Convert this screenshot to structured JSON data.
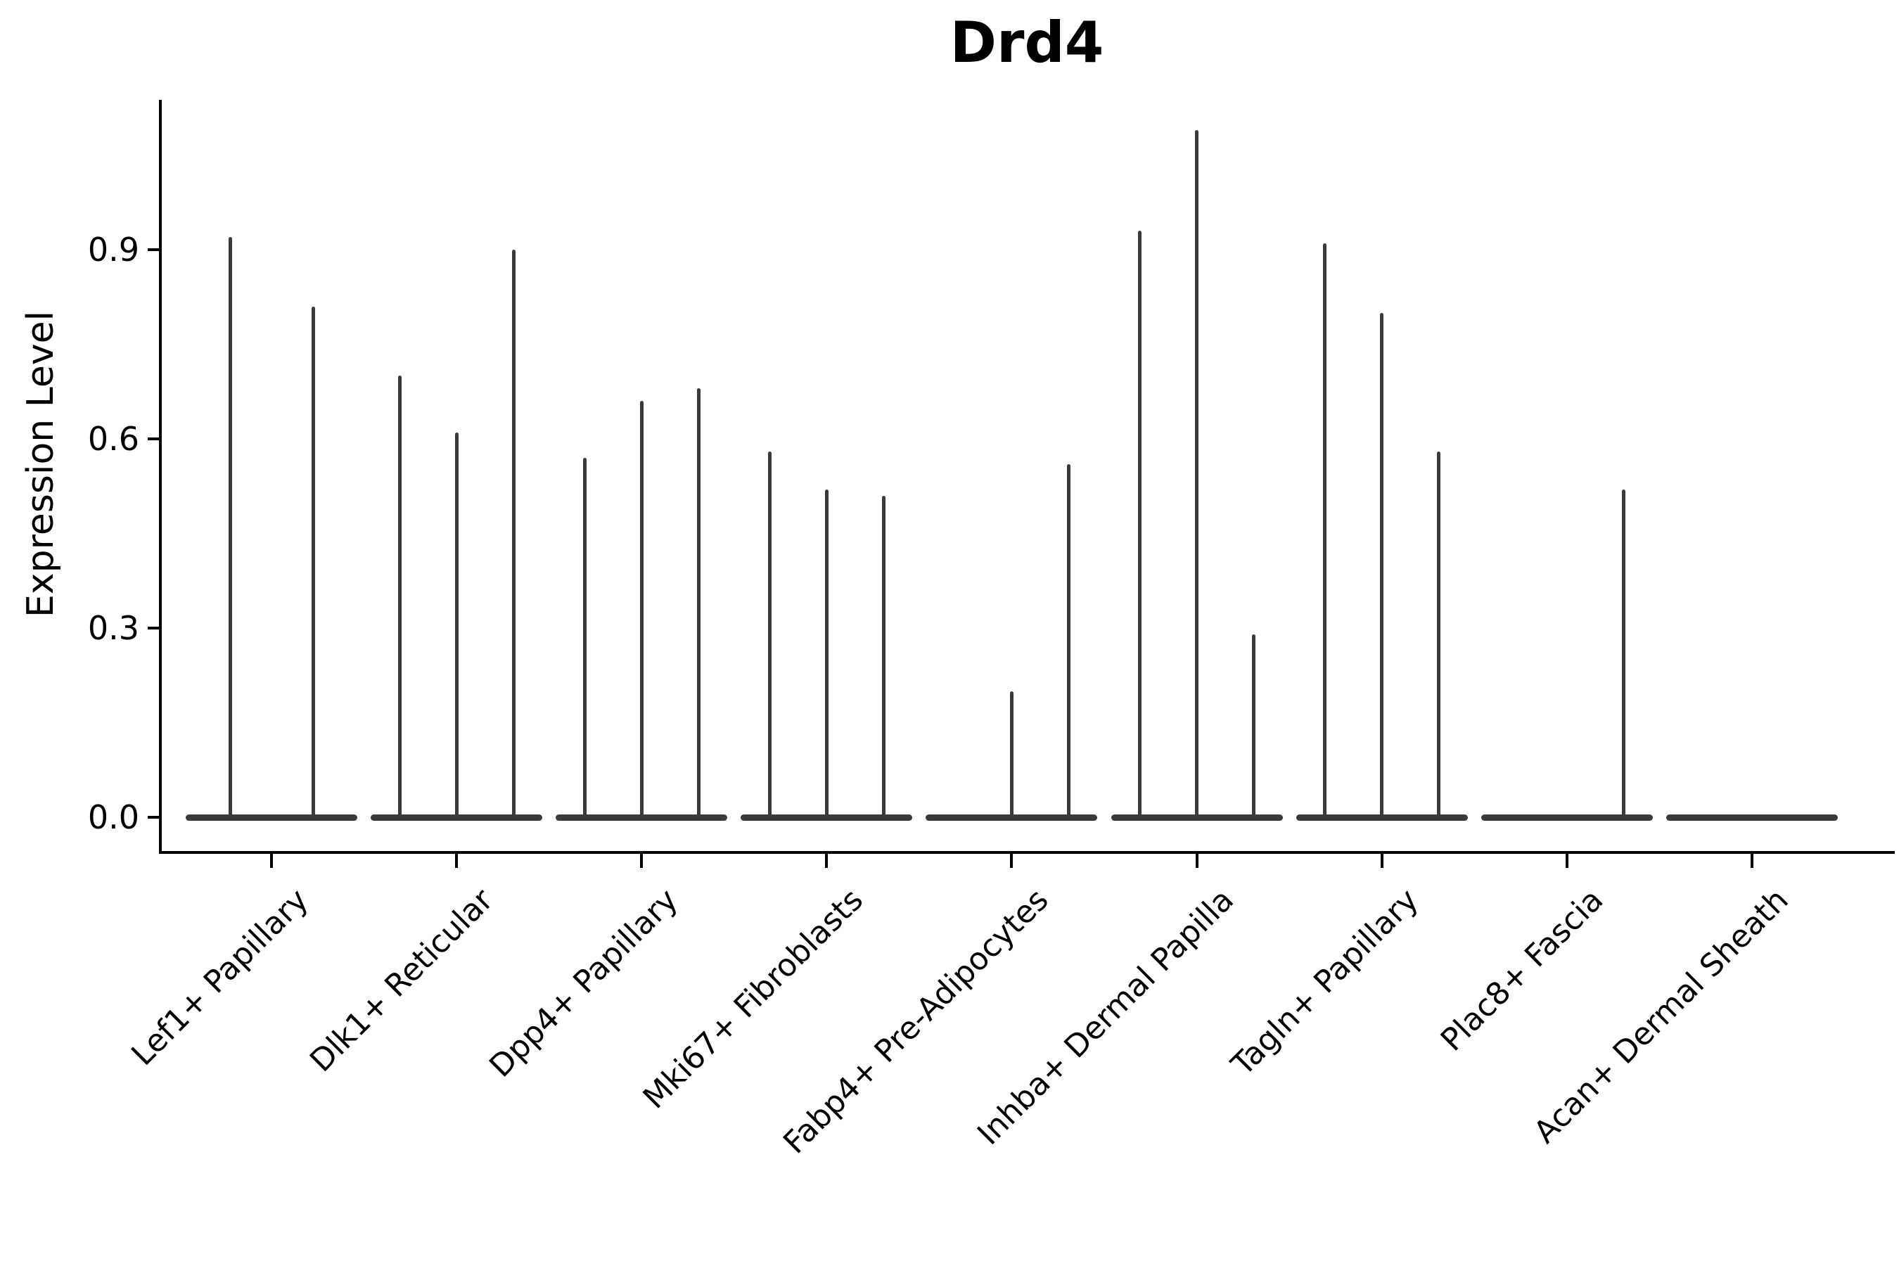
{
  "title": "Drd4",
  "axes": {
    "y_label": "Expression Level",
    "y_tick_labels": [
      "0.0",
      "0.3",
      "0.6",
      "0.9"
    ]
  },
  "chart_data": {
    "type": "violin",
    "title": "Drd4",
    "xlabel": "",
    "ylabel": "Expression Level",
    "ylim": [
      -0.05,
      1.14
    ],
    "yticks": [
      0.0,
      0.3,
      0.6,
      0.9
    ],
    "ytick_labels": [
      "0.0",
      "0.3",
      "0.6",
      "0.9"
    ],
    "grid": false,
    "legend": "none",
    "shape_note": "Seurat-style violins: nearly all mass at 0 (flat dark bar) with a thin spike rising to the max expression value; 0 means flat violin with no spike",
    "categories": [
      "Lef1+ Papillary",
      "Dlk1+ Reticular",
      "Dpp4+ Papillary",
      "Mki67+ Fibroblasts",
      "Fabp4+ Pre-Adipocytes",
      "Inhba+ Dermal Papilla",
      "Tagln+ Papillary",
      "Plac8+ Fascia",
      "Acan+ Dermal Sheath"
    ],
    "groups": [
      {
        "category": "Lef1+ Papillary",
        "violin_max_values": [
          0.92,
          0.81
        ]
      },
      {
        "category": "Dlk1+ Reticular",
        "violin_max_values": [
          0.7,
          0.61,
          0.9
        ]
      },
      {
        "category": "Dpp4+ Papillary",
        "violin_max_values": [
          0.57,
          0.66,
          0.68
        ]
      },
      {
        "category": "Mki67+ Fibroblasts",
        "violin_max_values": [
          0.58,
          0.52,
          0.51
        ]
      },
      {
        "category": "Fabp4+ Pre-Adipocytes",
        "violin_max_values": [
          0.0,
          0.2,
          0.56
        ]
      },
      {
        "category": "Inhba+ Dermal Papilla",
        "violin_max_values": [
          0.93,
          1.09,
          0.29
        ]
      },
      {
        "category": "Tagln+ Papillary",
        "violin_max_values": [
          0.91,
          0.8,
          0.58
        ]
      },
      {
        "category": "Plac8+ Fascia",
        "violin_max_values": [
          0.0,
          0.0,
          0.52
        ]
      },
      {
        "category": "Acan+ Dermal Sheath",
        "violin_max_values": [
          0.0,
          0.0,
          0.0
        ]
      }
    ],
    "colors": {
      "violin": "#3a3a3a",
      "axis": "#000000",
      "text": "#000000",
      "background": "#ffffff"
    }
  }
}
